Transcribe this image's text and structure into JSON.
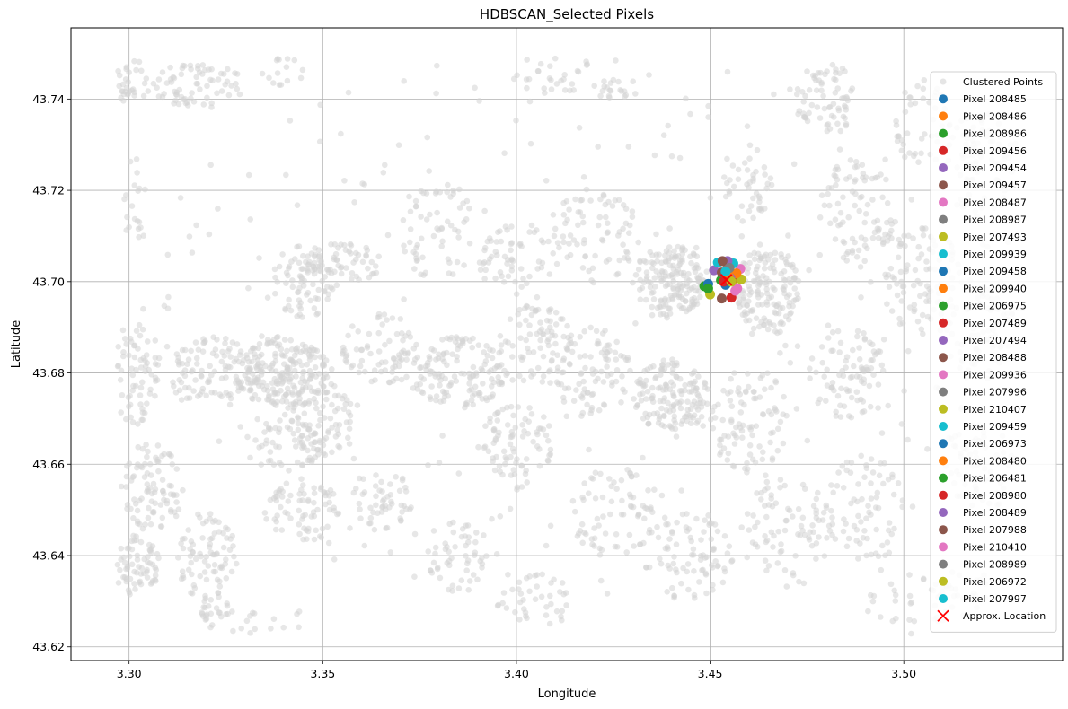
{
  "chart_data": {
    "type": "scatter",
    "title": "HDBSCAN_Selected Pixels",
    "xlabel": "Longitude",
    "ylabel": "Latitude",
    "xlim": [
      3.285,
      3.541
    ],
    "ylim": [
      43.617,
      43.7556
    ],
    "xticks": [
      3.3,
      3.35,
      3.4,
      3.45,
      3.5
    ],
    "xtick_labels": [
      "3.30",
      "3.35",
      "3.40",
      "3.45",
      "3.50"
    ],
    "yticks": [
      43.62,
      43.64,
      43.66,
      43.68,
      43.7,
      43.72,
      43.74
    ],
    "ytick_labels": [
      "43.62",
      "43.64",
      "43.66",
      "43.68",
      "43.70",
      "43.72",
      "43.74"
    ],
    "grid": true,
    "legend_position": "right",
    "background_series": {
      "name": "Clustered Points",
      "color": "#d3d3d3",
      "density_regions": [
        {
          "lon": 3.3,
          "lat": 43.744,
          "rx": 0.006,
          "ry": 0.005,
          "n": 40
        },
        {
          "lon": 3.318,
          "lat": 43.743,
          "rx": 0.012,
          "ry": 0.005,
          "n": 70
        },
        {
          "lon": 3.34,
          "lat": 43.746,
          "rx": 0.006,
          "ry": 0.003,
          "n": 15
        },
        {
          "lon": 3.302,
          "lat": 43.718,
          "rx": 0.004,
          "ry": 0.01,
          "n": 20
        },
        {
          "lon": 3.302,
          "lat": 43.68,
          "rx": 0.006,
          "ry": 0.012,
          "n": 70
        },
        {
          "lon": 3.306,
          "lat": 43.655,
          "rx": 0.008,
          "ry": 0.01,
          "n": 90
        },
        {
          "lon": 3.302,
          "lat": 43.638,
          "rx": 0.006,
          "ry": 0.007,
          "n": 70
        },
        {
          "lon": 3.32,
          "lat": 43.64,
          "rx": 0.008,
          "ry": 0.01,
          "n": 80
        },
        {
          "lon": 3.322,
          "lat": 43.628,
          "rx": 0.004,
          "ry": 0.004,
          "n": 25
        },
        {
          "lon": 3.322,
          "lat": 43.68,
          "rx": 0.012,
          "ry": 0.008,
          "n": 110
        },
        {
          "lon": 3.34,
          "lat": 43.68,
          "rx": 0.012,
          "ry": 0.008,
          "n": 200
        },
        {
          "lon": 3.345,
          "lat": 43.7,
          "rx": 0.008,
          "ry": 0.008,
          "n": 70
        },
        {
          "lon": 3.355,
          "lat": 43.704,
          "rx": 0.01,
          "ry": 0.005,
          "n": 60
        },
        {
          "lon": 3.34,
          "lat": 43.664,
          "rx": 0.01,
          "ry": 0.006,
          "n": 60
        },
        {
          "lon": 3.345,
          "lat": 43.65,
          "rx": 0.01,
          "ry": 0.007,
          "n": 70
        },
        {
          "lon": 3.35,
          "lat": 43.67,
          "rx": 0.008,
          "ry": 0.008,
          "n": 70
        },
        {
          "lon": 3.365,
          "lat": 43.652,
          "rx": 0.008,
          "ry": 0.007,
          "n": 50
        },
        {
          "lon": 3.365,
          "lat": 43.685,
          "rx": 0.01,
          "ry": 0.008,
          "n": 70
        },
        {
          "lon": 3.335,
          "lat": 43.625,
          "rx": 0.012,
          "ry": 0.005,
          "n": 20
        },
        {
          "lon": 3.385,
          "lat": 43.68,
          "rx": 0.012,
          "ry": 0.008,
          "n": 130
        },
        {
          "lon": 3.38,
          "lat": 43.712,
          "rx": 0.01,
          "ry": 0.012,
          "n": 60
        },
        {
          "lon": 3.4,
          "lat": 43.705,
          "rx": 0.01,
          "ry": 0.008,
          "n": 60
        },
        {
          "lon": 3.405,
          "lat": 43.685,
          "rx": 0.01,
          "ry": 0.01,
          "n": 90
        },
        {
          "lon": 3.4,
          "lat": 43.665,
          "rx": 0.01,
          "ry": 0.008,
          "n": 80
        },
        {
          "lon": 3.385,
          "lat": 43.64,
          "rx": 0.008,
          "ry": 0.008,
          "n": 50
        },
        {
          "lon": 3.405,
          "lat": 43.63,
          "rx": 0.01,
          "ry": 0.006,
          "n": 40
        },
        {
          "lon": 3.41,
          "lat": 43.745,
          "rx": 0.012,
          "ry": 0.004,
          "n": 25
        },
        {
          "lon": 3.425,
          "lat": 43.742,
          "rx": 0.004,
          "ry": 0.003,
          "n": 15
        },
        {
          "lon": 3.42,
          "lat": 43.71,
          "rx": 0.012,
          "ry": 0.01,
          "n": 70
        },
        {
          "lon": 3.42,
          "lat": 43.68,
          "rx": 0.01,
          "ry": 0.01,
          "n": 80
        },
        {
          "lon": 3.425,
          "lat": 43.65,
          "rx": 0.012,
          "ry": 0.01,
          "n": 70
        },
        {
          "lon": 3.44,
          "lat": 43.7,
          "rx": 0.01,
          "ry": 0.008,
          "n": 170
        },
        {
          "lon": 3.44,
          "lat": 43.675,
          "rx": 0.01,
          "ry": 0.008,
          "n": 150
        },
        {
          "lon": 3.465,
          "lat": 43.698,
          "rx": 0.008,
          "ry": 0.01,
          "n": 150
        },
        {
          "lon": 3.46,
          "lat": 43.72,
          "rx": 0.006,
          "ry": 0.008,
          "n": 40
        },
        {
          "lon": 3.46,
          "lat": 43.67,
          "rx": 0.01,
          "ry": 0.012,
          "n": 90
        },
        {
          "lon": 3.445,
          "lat": 43.64,
          "rx": 0.012,
          "ry": 0.01,
          "n": 80
        },
        {
          "lon": 3.47,
          "lat": 43.645,
          "rx": 0.012,
          "ry": 0.012,
          "n": 80
        },
        {
          "lon": 3.48,
          "lat": 43.74,
          "rx": 0.008,
          "ry": 0.008,
          "n": 70
        },
        {
          "lon": 3.488,
          "lat": 43.715,
          "rx": 0.01,
          "ry": 0.012,
          "n": 90
        },
        {
          "lon": 3.485,
          "lat": 43.68,
          "rx": 0.01,
          "ry": 0.01,
          "n": 80
        },
        {
          "lon": 3.49,
          "lat": 43.65,
          "rx": 0.01,
          "ry": 0.012,
          "n": 70
        },
        {
          "lon": 3.505,
          "lat": 43.7,
          "rx": 0.01,
          "ry": 0.012,
          "n": 90
        },
        {
          "lon": 3.505,
          "lat": 43.735,
          "rx": 0.008,
          "ry": 0.01,
          "n": 50
        },
        {
          "lon": 3.52,
          "lat": 43.725,
          "rx": 0.01,
          "ry": 0.012,
          "n": 90
        },
        {
          "lon": 3.52,
          "lat": 43.69,
          "rx": 0.01,
          "ry": 0.012,
          "n": 80
        },
        {
          "lon": 3.52,
          "lat": 43.66,
          "rx": 0.01,
          "ry": 0.01,
          "n": 60
        },
        {
          "lon": 3.515,
          "lat": 43.632,
          "rx": 0.008,
          "ry": 0.006,
          "n": 30
        },
        {
          "lon": 3.5,
          "lat": 43.63,
          "rx": 0.012,
          "ry": 0.008,
          "n": 30
        },
        {
          "lon": 3.415,
          "lat": 43.69,
          "rx": 0.12,
          "ry": 0.06,
          "n": 300
        }
      ]
    },
    "series": [
      {
        "name": "Pixel 208485",
        "color": "#1f77b4",
        "x": 3.4535,
        "y": 43.7015
      },
      {
        "name": "Pixel 208486",
        "color": "#ff7f0e",
        "x": 3.4555,
        "y": 43.7015
      },
      {
        "name": "Pixel 208986",
        "color": "#2ca02c",
        "x": 3.4528,
        "y": 43.7003
      },
      {
        "name": "Pixel 209456",
        "color": "#d62728",
        "x": 3.456,
        "y": 43.7005
      },
      {
        "name": "Pixel 209454",
        "color": "#9467bd",
        "x": 3.451,
        "y": 43.7025
      },
      {
        "name": "Pixel 209457",
        "color": "#8c564b",
        "x": 3.453,
        "y": 43.6963
      },
      {
        "name": "Pixel 208487",
        "color": "#e377c2",
        "x": 3.4578,
        "y": 43.7028
      },
      {
        "name": "Pixel 208987",
        "color": "#7f7f7f",
        "x": 3.4548,
        "y": 43.7043
      },
      {
        "name": "Pixel 207493",
        "color": "#bcbd22",
        "x": 3.458,
        "y": 43.7005
      },
      {
        "name": "Pixel 209939",
        "color": "#17becf",
        "x": 3.452,
        "y": 43.7042
      },
      {
        "name": "Pixel 209458",
        "color": "#1f77b4",
        "x": 3.454,
        "y": 43.6993
      },
      {
        "name": "Pixel 209940",
        "color": "#ff7f0e",
        "x": 3.4568,
        "y": 43.7018
      },
      {
        "name": "Pixel 206975",
        "color": "#2ca02c",
        "x": 3.4485,
        "y": 43.699
      },
      {
        "name": "Pixel 207489",
        "color": "#d62728",
        "x": 3.4555,
        "y": 43.6965
      },
      {
        "name": "Pixel 207494",
        "color": "#9467bd",
        "x": 3.4552,
        "y": 43.7008
      },
      {
        "name": "Pixel 208488",
        "color": "#8c564b",
        "x": 3.453,
        "y": 43.702
      },
      {
        "name": "Pixel 209936",
        "color": "#e377c2",
        "x": 3.457,
        "y": 43.6985
      },
      {
        "name": "Pixel 207996",
        "color": "#7f7f7f",
        "x": 3.4545,
        "y": 43.703
      },
      {
        "name": "Pixel 210407",
        "color": "#bcbd22",
        "x": 3.45,
        "y": 43.6972
      },
      {
        "name": "Pixel 209459",
        "color": "#17becf",
        "x": 3.456,
        "y": 43.704
      },
      {
        "name": "Pixel 206973",
        "color": "#1f77b4",
        "x": 3.4495,
        "y": 43.6995
      },
      {
        "name": "Pixel 208480",
        "color": "#ff7f0e",
        "x": 3.4548,
        "y": 43.701
      },
      {
        "name": "Pixel 206481",
        "color": "#2ca02c",
        "x": 3.4495,
        "y": 43.6985
      },
      {
        "name": "Pixel 208980",
        "color": "#d62728",
        "x": 3.4535,
        "y": 43.7
      },
      {
        "name": "Pixel 208489",
        "color": "#9467bd",
        "x": 3.4545,
        "y": 43.7045
      },
      {
        "name": "Pixel 207988",
        "color": "#8c564b",
        "x": 3.4532,
        "y": 43.7045
      },
      {
        "name": "Pixel 210410",
        "color": "#e377c2",
        "x": 3.4565,
        "y": 43.698
      },
      {
        "name": "Pixel 208989",
        "color": "#7f7f7f",
        "x": 3.455,
        "y": 43.703
      },
      {
        "name": "Pixel 206972",
        "color": "#bcbd22",
        "x": 3.4555,
        "y": 43.7
      },
      {
        "name": "Pixel 207997",
        "color": "#17becf",
        "x": 3.454,
        "y": 43.7022
      }
    ],
    "approx_location": {
      "name": "Approx. Location",
      "color": "#ff0000",
      "marker": "x",
      "x": 3.4542,
      "y": 43.7004
    },
    "legend": [
      "Clustered Points",
      "Pixel 208485",
      "Pixel 208486",
      "Pixel 208986",
      "Pixel 209456",
      "Pixel 209454",
      "Pixel 209457",
      "Pixel 208487",
      "Pixel 208987",
      "Pixel 207493",
      "Pixel 209939",
      "Pixel 209458",
      "Pixel 209940",
      "Pixel 206975",
      "Pixel 207489",
      "Pixel 207494",
      "Pixel 208488",
      "Pixel 209936",
      "Pixel 207996",
      "Pixel 210407",
      "Pixel 209459",
      "Pixel 206973",
      "Pixel 208480",
      "Pixel 206481",
      "Pixel 208980",
      "Pixel 208489",
      "Pixel 207988",
      "Pixel 210410",
      "Pixel 208989",
      "Pixel 206972",
      "Pixel 207997",
      "Approx. Location"
    ]
  }
}
